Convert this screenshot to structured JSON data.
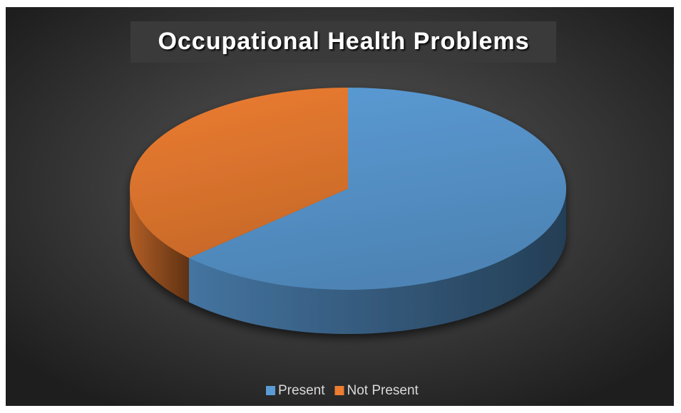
{
  "chart_data": {
    "type": "pie3d",
    "title": "Occupational Health Problems",
    "categories": [
      "Present",
      "Not Present"
    ],
    "values": [
      63,
      37
    ],
    "colors": [
      "#5b9bd5",
      "#ed7d31"
    ],
    "legend": "bottom"
  }
}
